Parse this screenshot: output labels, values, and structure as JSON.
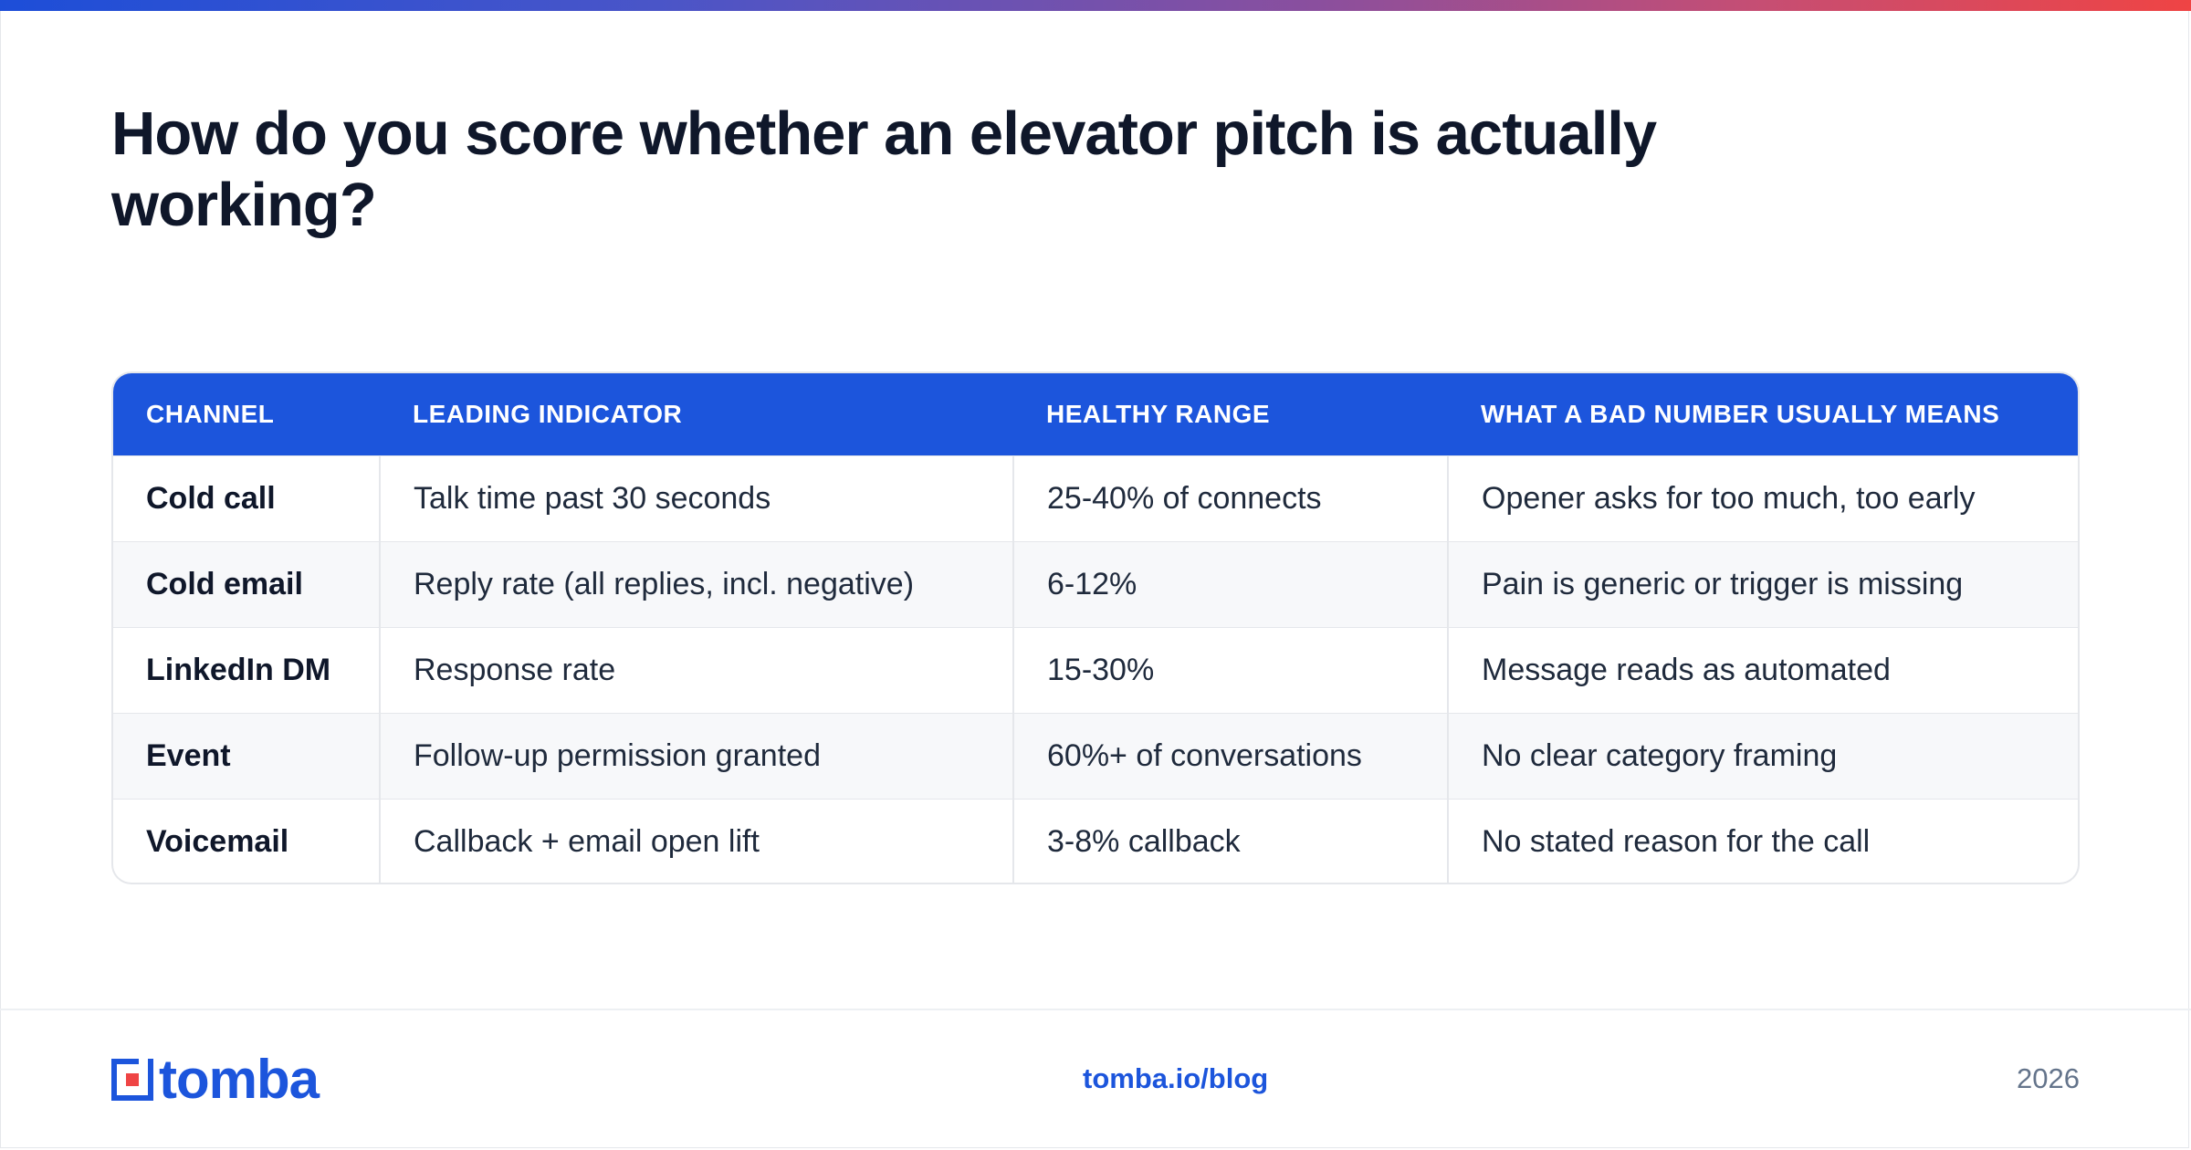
{
  "title": "How do you score whether an elevator pitch is actually working?",
  "table": {
    "headers": [
      "CHANNEL",
      "LEADING INDICATOR",
      "HEALTHY RANGE",
      "WHAT A BAD NUMBER USUALLY MEANS"
    ],
    "rows": [
      [
        "Cold call",
        "Talk time past 30 seconds",
        "25-40% of connects",
        "Opener asks for too much, too early"
      ],
      [
        "Cold email",
        "Reply rate (all replies, incl. negative)",
        "6-12%",
        "Pain is generic or trigger is missing"
      ],
      [
        "LinkedIn DM",
        "Response rate",
        "15-30%",
        "Message reads as automated"
      ],
      [
        "Event",
        "Follow-up permission granted",
        "60%+ of conversations",
        "No clear category framing"
      ],
      [
        "Voicemail",
        "Callback + email open lift",
        "3-8% callback",
        "No stated reason for the call"
      ]
    ]
  },
  "footer": {
    "logo_text": "tomba",
    "link": "tomba.io/blog",
    "year": "2026"
  },
  "colors": {
    "brand_blue": "#1c55dc",
    "accent_red": "#ef4444",
    "title_text": "#0f172a"
  }
}
